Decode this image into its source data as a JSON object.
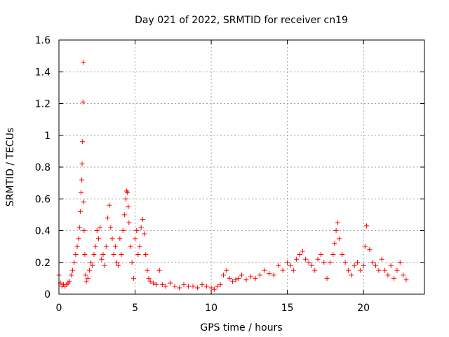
{
  "chart_data": {
    "type": "scatter",
    "title": "Day 021 of 2022, SRMTID for receiver cn19",
    "xlabel": "GPS time / hours",
    "ylabel": "SRMTID / TECUs",
    "xlim": [
      0,
      24
    ],
    "ylim": [
      0,
      1.6
    ],
    "xticks": [
      0,
      5,
      10,
      15,
      20
    ],
    "xtick_labels": [
      "0",
      "5",
      "10",
      "15",
      "20"
    ],
    "yticks": [
      0,
      0.2,
      0.4,
      0.6,
      0.8,
      1,
      1.2,
      1.4,
      1.6
    ],
    "ytick_labels": [
      "0",
      "0.2",
      "0.4",
      "0.6",
      "0.8",
      "1",
      "1.2",
      "1.4",
      "1.6"
    ],
    "grid": true,
    "marker": "plus",
    "series": [
      {
        "name": "SRMTID",
        "color": "#ff0000",
        "x": [
          0.0,
          0.1,
          0.2,
          0.3,
          0.4,
          0.5,
          0.6,
          0.7,
          0.8,
          0.9,
          1.0,
          1.1,
          1.2,
          1.3,
          1.35,
          1.4,
          1.45,
          1.5,
          1.52,
          1.55,
          1.58,
          1.6,
          1.62,
          1.65,
          1.7,
          1.75,
          1.8,
          1.9,
          2.0,
          2.1,
          2.2,
          2.3,
          2.4,
          2.5,
          2.6,
          2.7,
          2.8,
          2.9,
          3.0,
          3.1,
          3.2,
          3.3,
          3.4,
          3.5,
          3.6,
          3.7,
          3.8,
          3.9,
          4.0,
          4.1,
          4.2,
          4.3,
          4.4,
          4.45,
          4.5,
          4.55,
          4.6,
          4.7,
          4.8,
          4.9,
          5.0,
          5.1,
          5.2,
          5.3,
          5.4,
          5.5,
          5.6,
          5.7,
          5.8,
          5.9,
          6.0,
          6.2,
          6.4,
          6.6,
          6.8,
          7.0,
          7.3,
          7.6,
          7.9,
          8.2,
          8.5,
          8.8,
          9.1,
          9.4,
          9.7,
          10.0,
          10.2,
          10.4,
          10.6,
          10.8,
          11.0,
          11.2,
          11.4,
          11.6,
          11.8,
          12.0,
          12.3,
          12.6,
          12.9,
          13.2,
          13.5,
          13.8,
          14.1,
          14.4,
          14.7,
          15.0,
          15.2,
          15.4,
          15.6,
          15.8,
          16.0,
          16.2,
          16.4,
          16.6,
          16.8,
          17.0,
          17.2,
          17.4,
          17.6,
          17.8,
          18.0,
          18.1,
          18.2,
          18.3,
          18.4,
          18.6,
          18.8,
          19.0,
          19.2,
          19.4,
          19.6,
          19.8,
          20.0,
          20.1,
          20.2,
          20.4,
          20.6,
          20.8,
          21.0,
          21.2,
          21.4,
          21.6,
          21.8,
          22.0,
          22.2,
          22.4,
          22.6,
          22.8
        ],
        "y": [
          0.12,
          0.07,
          0.05,
          0.06,
          0.05,
          0.06,
          0.07,
          0.08,
          0.12,
          0.15,
          0.2,
          0.25,
          0.3,
          0.35,
          0.42,
          0.52,
          0.64,
          0.72,
          0.82,
          0.96,
          1.21,
          1.46,
          0.58,
          0.4,
          0.25,
          0.12,
          0.08,
          0.1,
          0.15,
          0.2,
          0.18,
          0.25,
          0.3,
          0.4,
          0.35,
          0.42,
          0.22,
          0.25,
          0.18,
          0.3,
          0.48,
          0.56,
          0.42,
          0.35,
          0.25,
          0.3,
          0.2,
          0.18,
          0.35,
          0.25,
          0.4,
          0.5,
          0.6,
          0.65,
          0.64,
          0.55,
          0.45,
          0.3,
          0.2,
          0.1,
          0.35,
          0.4,
          0.25,
          0.3,
          0.42,
          0.47,
          0.38,
          0.25,
          0.15,
          0.1,
          0.08,
          0.07,
          0.06,
          0.15,
          0.06,
          0.05,
          0.07,
          0.05,
          0.04,
          0.06,
          0.05,
          0.05,
          0.04,
          0.06,
          0.05,
          0.04,
          0.03,
          0.05,
          0.06,
          0.12,
          0.15,
          0.1,
          0.08,
          0.09,
          0.1,
          0.12,
          0.09,
          0.11,
          0.1,
          0.12,
          0.15,
          0.13,
          0.12,
          0.18,
          0.15,
          0.2,
          0.18,
          0.15,
          0.22,
          0.25,
          0.27,
          0.22,
          0.2,
          0.18,
          0.15,
          0.22,
          0.25,
          0.2,
          0.1,
          0.2,
          0.25,
          0.32,
          0.4,
          0.45,
          0.35,
          0.25,
          0.2,
          0.15,
          0.12,
          0.18,
          0.2,
          0.15,
          0.18,
          0.3,
          0.43,
          0.28,
          0.2,
          0.18,
          0.15,
          0.22,
          0.15,
          0.12,
          0.18,
          0.1,
          0.15,
          0.2,
          0.12,
          0.09
        ]
      }
    ]
  }
}
